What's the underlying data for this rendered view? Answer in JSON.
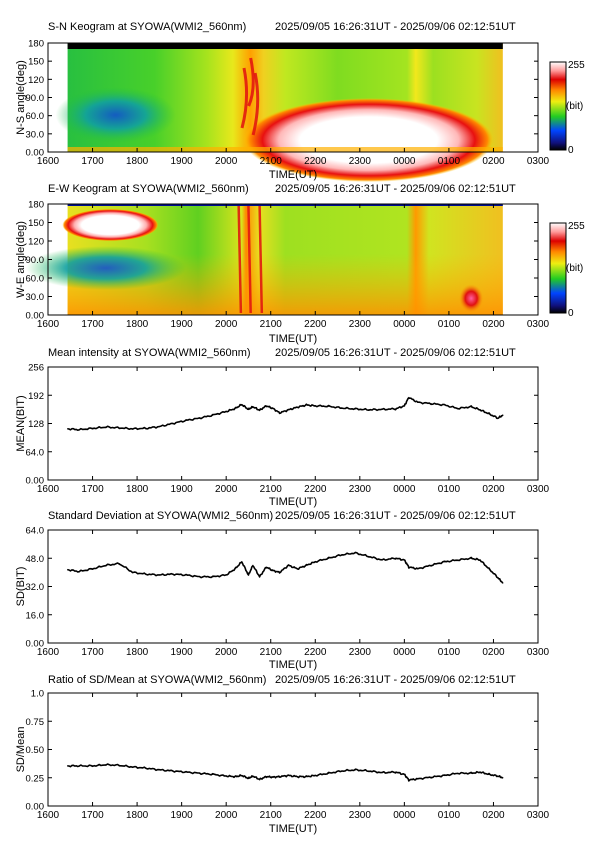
{
  "time_ticks": [
    "1600",
    "1700",
    "1800",
    "1900",
    "2000",
    "2100",
    "2200",
    "2300",
    "0000",
    "0100",
    "0200",
    "0300"
  ],
  "time_label": "TIME(UT)",
  "chart_data": [
    {
      "type": "heatmap",
      "title": "S-N Keogram at SYOWA(WMI2_560nm)",
      "time_range": "2025/09/05 16:26:31UT - 2025/09/06 02:12:51UT",
      "xlabel": "TIME(UT)",
      "ylabel": "N-S angle(deg)",
      "yticks": [
        "180",
        "150",
        "120",
        "90.0",
        "60.0",
        "30.0",
        "0.00"
      ],
      "colorbar": {
        "min_label": "0",
        "max_label": "255",
        "unit": "(bit)"
      },
      "data_start_hour": 16.44,
      "data_end_hour": 26.21,
      "colors": {
        "background": "#22cc22",
        "bright": "#ffffff",
        "dark": "#000000"
      }
    },
    {
      "type": "heatmap",
      "title": "E-W Keogram at SYOWA(WMI2_560nm)",
      "time_range": "2025/09/05 16:26:31UT - 2025/09/06 02:12:51UT",
      "xlabel": "TIME(UT)",
      "ylabel": "W-E angle(deg)",
      "yticks": [
        "180",
        "150",
        "120",
        "90.0",
        "60.0",
        "30.0",
        "0.00"
      ],
      "colorbar": {
        "min_label": "0",
        "max_label": "255",
        "unit": "(bit)"
      },
      "data_start_hour": 16.44,
      "data_end_hour": 26.21
    },
    {
      "type": "line",
      "title": "Mean intensity at SYOWA(WMI2_560nm)",
      "time_range": "2025/09/05 16:26:31UT - 2025/09/06 02:12:51UT",
      "xlabel": "TIME(UT)",
      "ylabel": "MEAN(BIT)",
      "ylim": [
        0,
        256
      ],
      "yticks": [
        "256",
        "192",
        "128",
        "64.0",
        "0.00"
      ],
      "x": [
        16.44,
        16.7,
        17.0,
        17.3,
        17.6,
        17.9,
        18.2,
        18.5,
        18.8,
        19.1,
        19.4,
        19.7,
        20.0,
        20.2,
        20.35,
        20.5,
        20.6,
        20.75,
        20.9,
        21.05,
        21.2,
        21.4,
        21.6,
        21.8,
        22.0,
        22.3,
        22.6,
        22.9,
        23.2,
        23.5,
        23.8,
        24.0,
        24.1,
        24.3,
        24.6,
        24.9,
        25.2,
        25.5,
        25.7,
        25.9,
        26.1,
        26.21
      ],
      "series": [
        {
          "values": [
            116,
            114,
            117,
            120,
            118,
            116,
            117,
            121,
            128,
            135,
            140,
            147,
            155,
            162,
            171,
            160,
            166,
            158,
            168,
            162,
            152,
            159,
            165,
            170,
            168,
            167,
            163,
            161,
            159,
            160,
            161,
            168,
            187,
            176,
            173,
            170,
            162,
            166,
            159,
            150,
            140,
            147
          ]
        }
      ]
    },
    {
      "type": "line",
      "title": "Standard Deviation at SYOWA(WMI2_560nm)",
      "time_range": "2025/09/05 16:26:31UT - 2025/09/06 02:12:51UT",
      "xlabel": "TIME(UT)",
      "ylabel": "SD(BIT)",
      "ylim": [
        0,
        64
      ],
      "yticks": [
        "64.0",
        "48.0",
        "32.0",
        "16.0",
        "0.00"
      ],
      "x": [
        16.44,
        16.7,
        17.0,
        17.3,
        17.6,
        17.9,
        18.2,
        18.5,
        18.8,
        19.1,
        19.4,
        19.7,
        20.0,
        20.2,
        20.35,
        20.5,
        20.6,
        20.75,
        20.9,
        21.05,
        21.2,
        21.4,
        21.6,
        21.8,
        22.0,
        22.3,
        22.6,
        22.9,
        23.2,
        23.5,
        23.8,
        24.0,
        24.1,
        24.3,
        24.6,
        24.9,
        25.2,
        25.5,
        25.7,
        25.9,
        26.1,
        26.21
      ],
      "series": [
        {
          "values": [
            41.5,
            40.5,
            42,
            44,
            45,
            40,
            39,
            38.5,
            39,
            38.5,
            37.5,
            37.5,
            38.5,
            42,
            46,
            38.5,
            44,
            37.5,
            43,
            41,
            40,
            44,
            42,
            44,
            46,
            48,
            50,
            51,
            49,
            47,
            48,
            47,
            43,
            42,
            44,
            46,
            47,
            48,
            47,
            42,
            37,
            34
          ]
        }
      ]
    },
    {
      "type": "line",
      "title": "Ratio of SD/Mean at SYOWA(WMI2_560nm)",
      "time_range": "2025/09/05 16:26:31UT - 2025/09/06 02:12:51UT",
      "xlabel": "TIME(UT)",
      "ylabel": "SD/Mean",
      "ylim": [
        0,
        1.0
      ],
      "yticks": [
        "1.0",
        "0.75",
        "0.50",
        "0.25",
        "0.00"
      ],
      "x": [
        16.44,
        16.7,
        17.0,
        17.3,
        17.6,
        17.9,
        18.2,
        18.5,
        18.8,
        19.1,
        19.4,
        19.7,
        20.0,
        20.2,
        20.35,
        20.5,
        20.6,
        20.75,
        20.9,
        21.05,
        21.2,
        21.4,
        21.6,
        21.8,
        22.0,
        22.3,
        22.6,
        22.9,
        23.2,
        23.5,
        23.8,
        24.0,
        24.1,
        24.3,
        24.6,
        24.9,
        25.2,
        25.5,
        25.7,
        25.9,
        26.1,
        26.21
      ],
      "series": [
        {
          "values": [
            0.355,
            0.355,
            0.355,
            0.365,
            0.36,
            0.345,
            0.335,
            0.32,
            0.31,
            0.3,
            0.29,
            0.28,
            0.265,
            0.26,
            0.27,
            0.245,
            0.265,
            0.235,
            0.26,
            0.255,
            0.26,
            0.27,
            0.26,
            0.26,
            0.27,
            0.29,
            0.31,
            0.32,
            0.31,
            0.295,
            0.3,
            0.28,
            0.23,
            0.24,
            0.255,
            0.27,
            0.29,
            0.29,
            0.3,
            0.28,
            0.265,
            0.25
          ]
        }
      ]
    }
  ]
}
